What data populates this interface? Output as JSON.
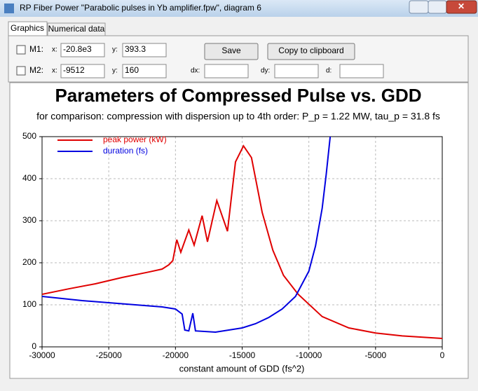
{
  "window": {
    "title": "RP Fiber Power \"Parabolic pulses in Yb amplifier.fpw\", diagram 6"
  },
  "tabs": [
    "Graphics",
    "Numerical data"
  ],
  "markers": [
    {
      "name": "M1:",
      "x_label": "x:",
      "x": "-20.8e3",
      "y_label": "y:",
      "y": "393.3"
    },
    {
      "name": "M2:",
      "x_label": "x:",
      "x": "-9512",
      "y_label": "y:",
      "y": "160"
    }
  ],
  "deltas": [
    "dx:",
    "dy:",
    "d:"
  ],
  "buttons": [
    "Save",
    "Copy to clipboard"
  ],
  "chart_data": {
    "type": "line",
    "title": "Parameters of Compressed Pulse vs. GDD",
    "subtitle": "for comparison: compression with dispersion up to 4th order: P_p = 1.22 MW, tau_p = 31.8 fs",
    "xlabel": "constant amount of GDD (fs^2)",
    "xlim": [
      -30000,
      0
    ],
    "xticks": [
      -30000,
      -25000,
      -20000,
      -15000,
      -10000,
      -5000,
      0
    ],
    "ylim": [
      0,
      500
    ],
    "yticks": [
      0,
      100,
      200,
      300,
      400,
      500
    ],
    "grid": true,
    "legend": "upper left",
    "series": [
      {
        "name": "peak power (kW)",
        "color": "#e00000",
        "x": [
          -30000,
          -28000,
          -26000,
          -24000,
          -22000,
          -21000,
          -20500,
          -20200,
          -19900,
          -19600,
          -19000,
          -18600,
          -18000,
          -17600,
          -16900,
          -16100,
          -15500,
          -14900,
          -14300,
          -13500,
          -12700,
          -11900,
          -10800,
          -9000,
          -7000,
          -5000,
          -3000,
          0
        ],
        "values": [
          125,
          138,
          150,
          165,
          178,
          185,
          195,
          205,
          255,
          225,
          278,
          242,
          312,
          250,
          348,
          275,
          440,
          478,
          450,
          320,
          230,
          170,
          125,
          72,
          45,
          33,
          26,
          20
        ]
      },
      {
        "name": "duration (fs)",
        "color": "#0000e0",
        "x": [
          -30000,
          -27000,
          -25000,
          -23000,
          -21000,
          -20000,
          -19500,
          -19300,
          -19000,
          -18700,
          -18500,
          -17000,
          -16000,
          -15000,
          -14000,
          -13000,
          -12000,
          -11000,
          -10000,
          -9500,
          -9000,
          -8700,
          -8400
        ],
        "values": [
          120,
          110,
          105,
          100,
          95,
          90,
          78,
          40,
          38,
          80,
          38,
          35,
          40,
          45,
          55,
          70,
          90,
          120,
          180,
          240,
          330,
          410,
          500
        ]
      }
    ]
  }
}
